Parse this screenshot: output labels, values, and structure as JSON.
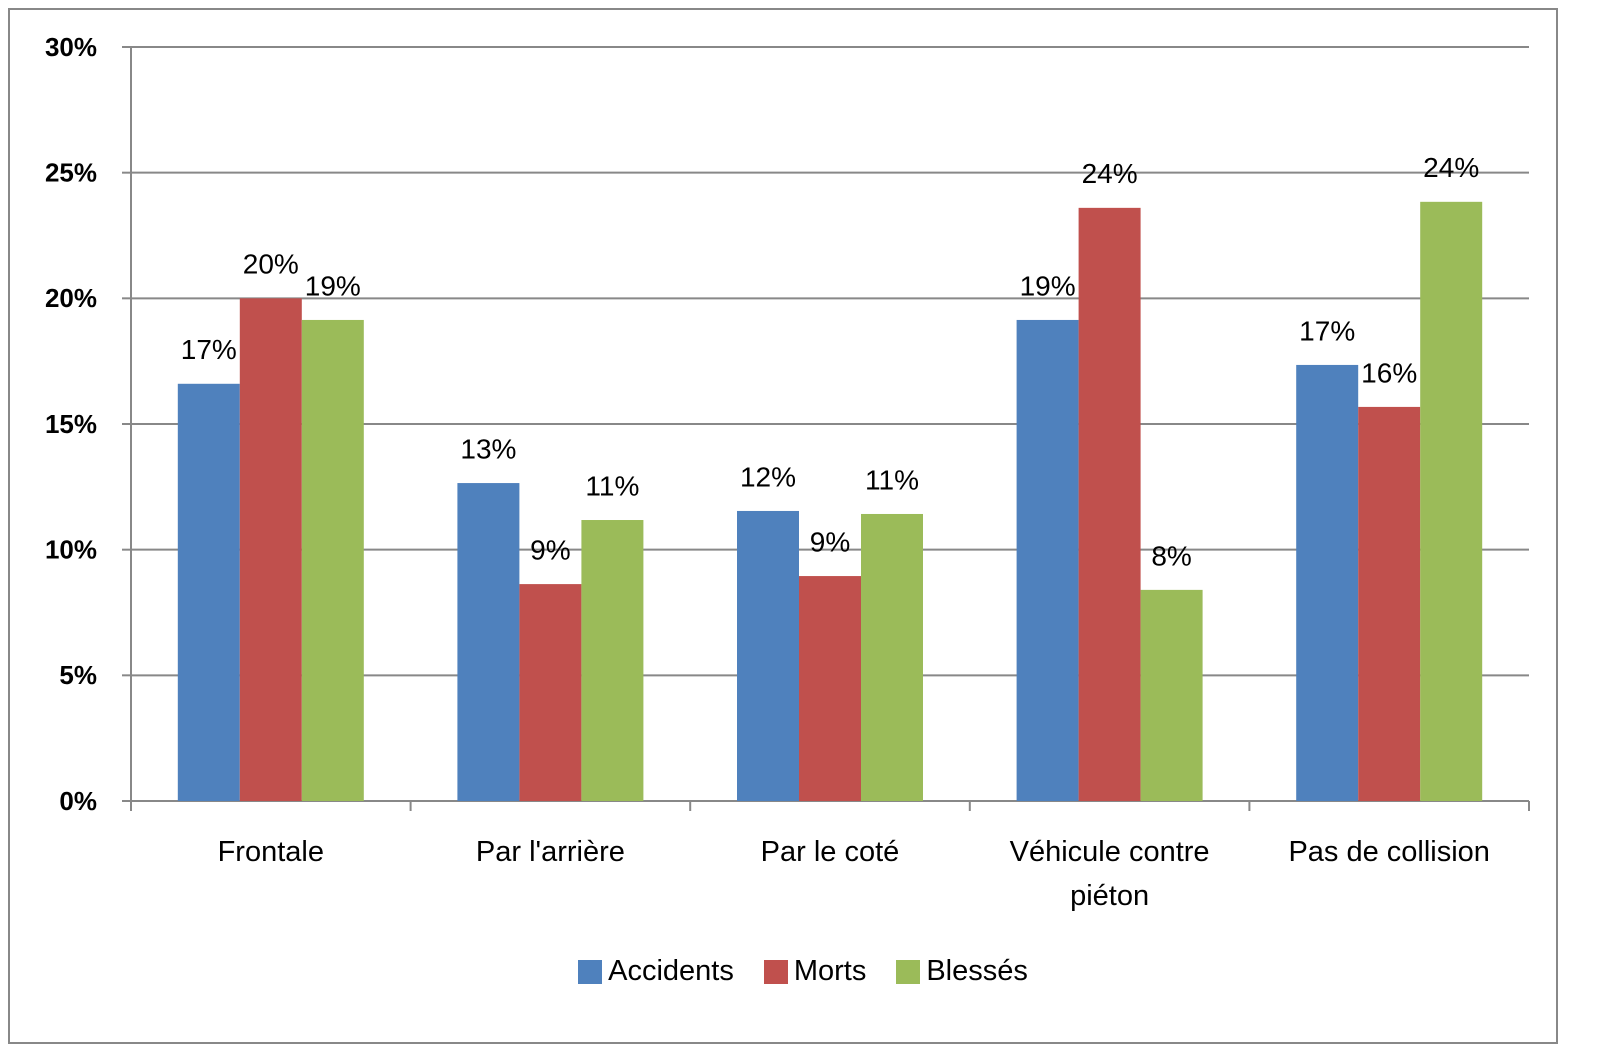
{
  "chart_data": {
    "type": "bar",
    "categories": [
      "Frontale",
      "Par l'arrière",
      "Par le coté",
      "Véhicule contre piéton",
      "Pas de collision"
    ],
    "series": [
      {
        "name": "Accidents",
        "color": "#4f81bd",
        "values": [
          16.6,
          12.65,
          11.54,
          19.14,
          17.35
        ],
        "value_labels": [
          "17%",
          "13%",
          "12%",
          "19%",
          "17%"
        ]
      },
      {
        "name": "Morts",
        "color": "#c0504d",
        "values": [
          20.0,
          8.63,
          8.95,
          23.6,
          15.68
        ],
        "value_labels": [
          "20%",
          "9%",
          "9%",
          "24%",
          "16%"
        ]
      },
      {
        "name": "Blessés",
        "color": "#9bbb59",
        "values": [
          19.14,
          11.18,
          11.42,
          8.4,
          23.84
        ],
        "value_labels": [
          "19%",
          "11%",
          "11%",
          "8%",
          "24%"
        ]
      }
    ],
    "ylim": [
      0,
      30
    ],
    "yticks": [
      {
        "value": 0,
        "label": "0%"
      },
      {
        "value": 5,
        "label": "5%"
      },
      {
        "value": 10,
        "label": "10%"
      },
      {
        "value": 15,
        "label": "15%"
      },
      {
        "value": 20,
        "label": "20%"
      },
      {
        "value": 25,
        "label": "25%"
      },
      {
        "value": 30,
        "label": "30%"
      }
    ],
    "grid": true,
    "legend": "bottom"
  }
}
